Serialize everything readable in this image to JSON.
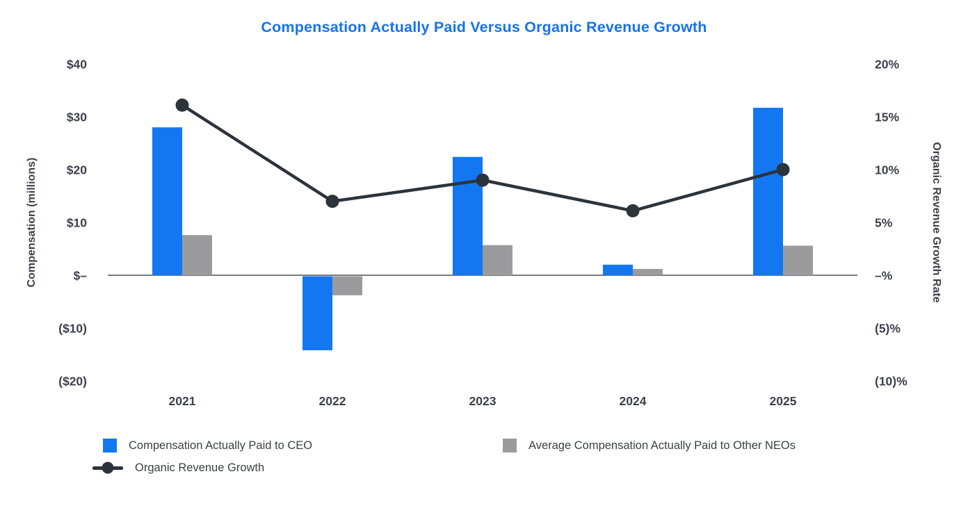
{
  "chart_data": {
    "type": "combo (bar + line), dual axis",
    "title": "Compensation Actually Paid Versus Organic Revenue Growth",
    "categories": [
      "2021",
      "2022",
      "2023",
      "2024",
      "2025"
    ],
    "series": [
      {
        "name": "Compensation Actually Paid to CEO",
        "type": "bar",
        "axis": "left",
        "color": "#1377F2",
        "values": [
          28.0,
          -14.0,
          22.4,
          2.0,
          31.7
        ]
      },
      {
        "name": "Average Compensation Actually Paid to Other NEOs",
        "type": "bar",
        "axis": "left",
        "color": "#9B9B9E",
        "values": [
          7.6,
          -3.6,
          5.7,
          1.2,
          5.6
        ]
      },
      {
        "name": "Organic Revenue Growth",
        "type": "line",
        "axis": "right",
        "color": "#2D333B",
        "values": [
          16.1,
          7.0,
          9.0,
          6.1,
          10.0
        ]
      }
    ],
    "left_axis": {
      "label": "Compensation (millions)",
      "range": [
        -20,
        40
      ],
      "ticks": [
        {
          "label": "$40",
          "value": 40
        },
        {
          "label": "$30",
          "value": 30
        },
        {
          "label": "$20",
          "value": 20
        },
        {
          "label": "$10",
          "value": 10
        },
        {
          "label": "$–",
          "value": 0
        },
        {
          "label": "($10)",
          "value": -10
        },
        {
          "label": "($20)",
          "value": -20
        }
      ]
    },
    "right_axis": {
      "label": "Organic Revenue Growth Rate",
      "range": [
        -10,
        20
      ],
      "ticks": [
        {
          "label": "20%",
          "value": 20
        },
        {
          "label": "15%",
          "value": 15
        },
        {
          "label": "10%",
          "value": 10
        },
        {
          "label": "5%",
          "value": 5
        },
        {
          "label": "–%",
          "value": 0
        },
        {
          "label": "(5)%",
          "value": -5
        },
        {
          "label": "(10)%",
          "value": -10
        }
      ]
    },
    "grid": "off (zero baseline only)",
    "legend_position": "bottom-left, two columns",
    "colors": {
      "title": "#1673EC",
      "tick_text": "#3C414B",
      "axis_line": "#7A7B7E",
      "legend_text": "#3C4043"
    }
  }
}
